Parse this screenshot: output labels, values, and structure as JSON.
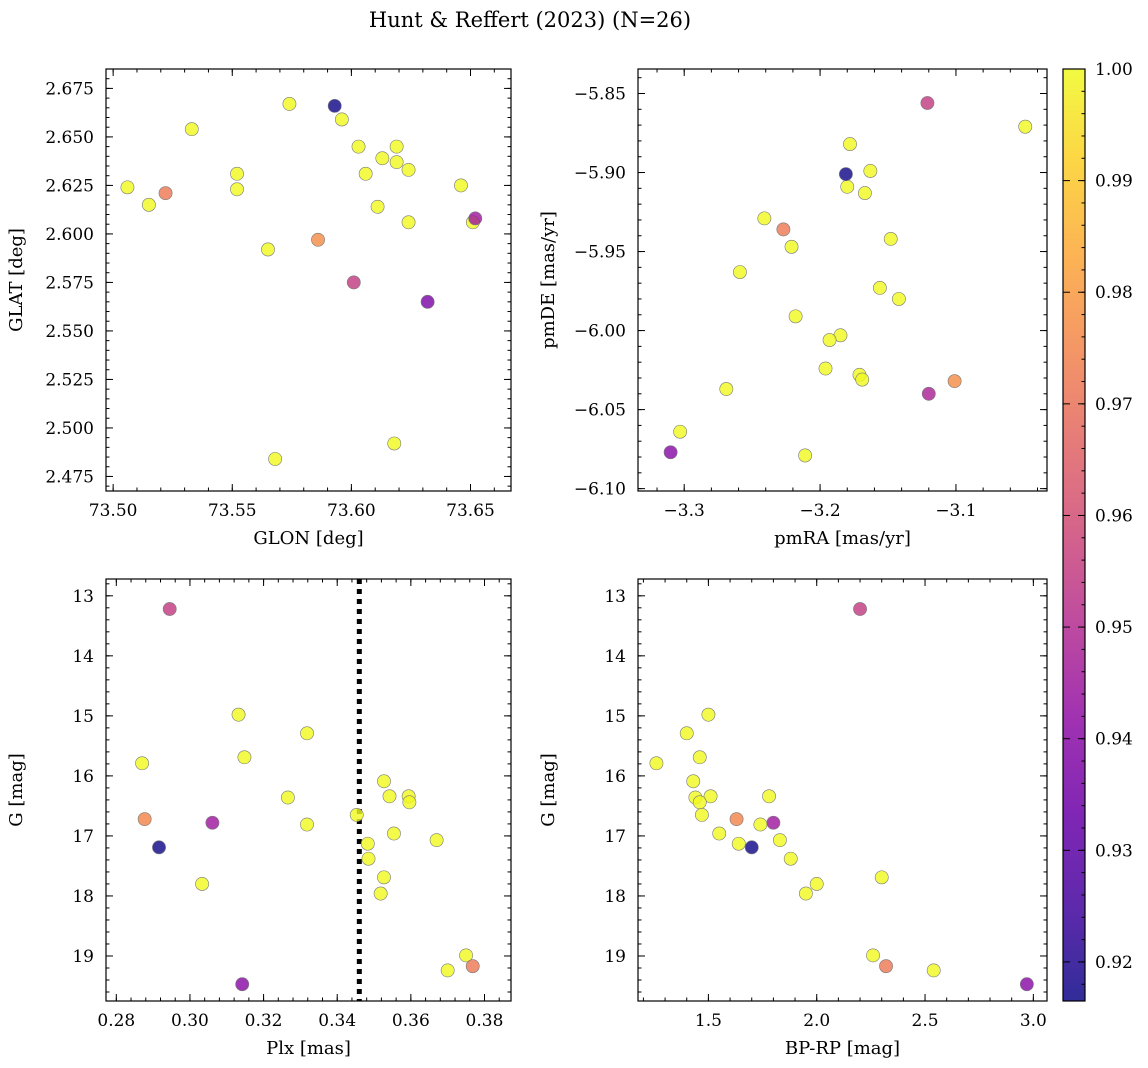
{
  "figure": {
    "title": "Hunt & Reffert (2023) (N=26)"
  },
  "colorbar": {
    "colormap": "plasma",
    "range": [
      0.9165,
      1.0
    ],
    "ticks": [
      0.92,
      0.93,
      0.94,
      0.95,
      0.96,
      0.97,
      0.98,
      0.99,
      1.0
    ],
    "tick_labels": [
      "0.92",
      "0.93",
      "0.94",
      "0.95",
      "0.96",
      "0.97",
      "0.98",
      "0.99",
      "1.00"
    ]
  },
  "chart_data": [
    {
      "type": "scatter",
      "id": "sky",
      "xlabel": "GLON [deg]",
      "ylabel": "GLAT [deg]",
      "xlim": [
        73.497,
        73.667
      ],
      "ylim": [
        2.4675,
        2.685
      ],
      "x_ticks": [
        73.5,
        73.55,
        73.6,
        73.65
      ],
      "x_tick_labels": [
        "73.50",
        "73.55",
        "73.60",
        "73.65"
      ],
      "y_ticks": [
        2.475,
        2.5,
        2.525,
        2.55,
        2.575,
        2.6,
        2.625,
        2.65,
        2.675
      ],
      "y_tick_labels": [
        "2.475",
        "2.500",
        "2.525",
        "2.550",
        "2.575",
        "2.600",
        "2.625",
        "2.650",
        "2.675"
      ],
      "points": [
        {
          "x": 73.593,
          "y": 2.666,
          "c": 0.917
        },
        {
          "x": 73.574,
          "y": 2.667,
          "c": 1.0
        },
        {
          "x": 73.533,
          "y": 2.654,
          "c": 1.0
        },
        {
          "x": 73.596,
          "y": 2.659,
          "c": 1.0
        },
        {
          "x": 73.603,
          "y": 2.645,
          "c": 1.0
        },
        {
          "x": 73.619,
          "y": 2.645,
          "c": 1.0
        },
        {
          "x": 73.613,
          "y": 2.639,
          "c": 1.0
        },
        {
          "x": 73.619,
          "y": 2.637,
          "c": 1.0
        },
        {
          "x": 73.624,
          "y": 2.633,
          "c": 1.0
        },
        {
          "x": 73.552,
          "y": 2.631,
          "c": 1.0
        },
        {
          "x": 73.606,
          "y": 2.631,
          "c": 1.0
        },
        {
          "x": 73.506,
          "y": 2.624,
          "c": 1.0
        },
        {
          "x": 73.552,
          "y": 2.623,
          "c": 1.0
        },
        {
          "x": 73.646,
          "y": 2.625,
          "c": 1.0
        },
        {
          "x": 73.522,
          "y": 2.621,
          "c": 0.972
        },
        {
          "x": 73.515,
          "y": 2.615,
          "c": 1.0
        },
        {
          "x": 73.611,
          "y": 2.614,
          "c": 1.0
        },
        {
          "x": 73.652,
          "y": 2.608,
          "c": 0.945
        },
        {
          "x": 73.624,
          "y": 2.606,
          "c": 1.0
        },
        {
          "x": 73.651,
          "y": 2.606,
          "c": 1.0
        },
        {
          "x": 73.586,
          "y": 2.597,
          "c": 0.977
        },
        {
          "x": 73.565,
          "y": 2.592,
          "c": 1.0
        },
        {
          "x": 73.601,
          "y": 2.575,
          "c": 0.955
        },
        {
          "x": 73.632,
          "y": 2.565,
          "c": 0.937
        },
        {
          "x": 73.618,
          "y": 2.492,
          "c": 1.0
        },
        {
          "x": 73.568,
          "y": 2.484,
          "c": 1.0
        }
      ]
    },
    {
      "type": "scatter",
      "id": "pm",
      "xlabel": "pmRA [mas/yr]",
      "ylabel": "pmDE [mas/yr]",
      "xlim": [
        -3.334,
        -3.033
      ],
      "ylim": [
        -6.1015,
        -5.8345
      ],
      "x_ticks": [
        -3.3,
        -3.2,
        -3.1
      ],
      "x_tick_labels": [
        "−3.3",
        "−3.2",
        "−3.1"
      ],
      "y_ticks": [
        -6.1,
        -6.05,
        -6.0,
        -5.95,
        -5.9,
        -5.85
      ],
      "y_tick_labels": [
        "−6.10",
        "−6.05",
        "−6.00",
        "−5.95",
        "−5.90",
        "−5.85"
      ],
      "points": [
        {
          "x": -3.121,
          "y": -5.856,
          "c": 0.955
        },
        {
          "x": -3.049,
          "y": -5.871,
          "c": 1.0
        },
        {
          "x": -3.178,
          "y": -5.882,
          "c": 1.0
        },
        {
          "x": -3.181,
          "y": -5.901,
          "c": 0.917
        },
        {
          "x": -3.163,
          "y": -5.899,
          "c": 1.0
        },
        {
          "x": -3.18,
          "y": -5.909,
          "c": 1.0
        },
        {
          "x": -3.167,
          "y": -5.913,
          "c": 1.0
        },
        {
          "x": -3.241,
          "y": -5.929,
          "c": 1.0
        },
        {
          "x": -3.227,
          "y": -5.936,
          "c": 0.972
        },
        {
          "x": -3.148,
          "y": -5.942,
          "c": 1.0
        },
        {
          "x": -3.221,
          "y": -5.947,
          "c": 1.0
        },
        {
          "x": -3.259,
          "y": -5.963,
          "c": 1.0
        },
        {
          "x": -3.156,
          "y": -5.973,
          "c": 1.0
        },
        {
          "x": -3.142,
          "y": -5.98,
          "c": 1.0
        },
        {
          "x": -3.218,
          "y": -5.991,
          "c": 1.0
        },
        {
          "x": -3.185,
          "y": -6.003,
          "c": 1.0
        },
        {
          "x": -3.193,
          "y": -6.006,
          "c": 1.0
        },
        {
          "x": -3.196,
          "y": -6.024,
          "c": 1.0
        },
        {
          "x": -3.171,
          "y": -6.028,
          "c": 1.0
        },
        {
          "x": -3.169,
          "y": -6.031,
          "c": 1.0
        },
        {
          "x": -3.101,
          "y": -6.032,
          "c": 0.977
        },
        {
          "x": -3.269,
          "y": -6.037,
          "c": 1.0
        },
        {
          "x": -3.12,
          "y": -6.04,
          "c": 0.948
        },
        {
          "x": -3.303,
          "y": -6.064,
          "c": 1.0
        },
        {
          "x": -3.31,
          "y": -6.077,
          "c": 0.94
        },
        {
          "x": -3.211,
          "y": -6.079,
          "c": 1.0
        }
      ]
    },
    {
      "type": "scatter",
      "id": "plx_g",
      "xlabel": "Plx [mas]",
      "ylabel": "G [mag]",
      "xlim": [
        0.2772,
        0.3872
      ],
      "ylim": [
        19.75,
        12.72
      ],
      "y_inverted": true,
      "x_ticks": [
        0.28,
        0.3,
        0.32,
        0.34,
        0.36,
        0.38
      ],
      "x_tick_labels": [
        "0.28",
        "0.30",
        "0.32",
        "0.34",
        "0.36",
        "0.38"
      ],
      "y_ticks": [
        13,
        14,
        15,
        16,
        17,
        18,
        19
      ],
      "y_tick_labels": [
        "13",
        "14",
        "15",
        "16",
        "17",
        "18",
        "19"
      ],
      "vline": {
        "x": 0.346,
        "style": "dotted",
        "color": "#000000"
      },
      "points": [
        {
          "x": 0.2945,
          "y": 13.22,
          "c": 0.955
        },
        {
          "x": 0.3132,
          "y": 14.98,
          "c": 1.0
        },
        {
          "x": 0.3318,
          "y": 15.29,
          "c": 1.0
        },
        {
          "x": 0.3148,
          "y": 15.69,
          "c": 1.0
        },
        {
          "x": 0.287,
          "y": 15.79,
          "c": 1.0
        },
        {
          "x": 0.3527,
          "y": 16.09,
          "c": 1.0
        },
        {
          "x": 0.3266,
          "y": 16.36,
          "c": 1.0
        },
        {
          "x": 0.3542,
          "y": 16.34,
          "c": 1.0
        },
        {
          "x": 0.3594,
          "y": 16.34,
          "c": 1.0
        },
        {
          "x": 0.3596,
          "y": 16.44,
          "c": 1.0
        },
        {
          "x": 0.3453,
          "y": 16.65,
          "c": 1.0
        },
        {
          "x": 0.2877,
          "y": 16.72,
          "c": 0.975
        },
        {
          "x": 0.3061,
          "y": 16.78,
          "c": 0.945
        },
        {
          "x": 0.3318,
          "y": 16.81,
          "c": 1.0
        },
        {
          "x": 0.3554,
          "y": 16.96,
          "c": 1.0
        },
        {
          "x": 0.367,
          "y": 17.07,
          "c": 1.0
        },
        {
          "x": 0.3483,
          "y": 17.13,
          "c": 1.0
        },
        {
          "x": 0.2916,
          "y": 17.19,
          "c": 0.917
        },
        {
          "x": 0.3485,
          "y": 17.38,
          "c": 1.0
        },
        {
          "x": 0.3527,
          "y": 17.69,
          "c": 1.0
        },
        {
          "x": 0.3033,
          "y": 17.8,
          "c": 1.0
        },
        {
          "x": 0.3518,
          "y": 17.96,
          "c": 1.0
        },
        {
          "x": 0.375,
          "y": 18.99,
          "c": 1.0
        },
        {
          "x": 0.3768,
          "y": 19.17,
          "c": 0.972
        },
        {
          "x": 0.37,
          "y": 19.24,
          "c": 1.0
        },
        {
          "x": 0.3142,
          "y": 19.47,
          "c": 0.94
        }
      ]
    },
    {
      "type": "scatter",
      "id": "cmd",
      "xlabel": "BP-RP [mag]",
      "ylabel": "G [mag]",
      "xlim": [
        1.175,
        3.063
      ],
      "ylim": [
        19.75,
        12.72
      ],
      "y_inverted": true,
      "x_ticks": [
        1.5,
        2.0,
        2.5,
        3.0
      ],
      "x_tick_labels": [
        "1.5",
        "2.0",
        "2.5",
        "3.0"
      ],
      "y_ticks": [
        13,
        14,
        15,
        16,
        17,
        18,
        19
      ],
      "y_tick_labels": [
        "13",
        "14",
        "15",
        "16",
        "17",
        "18",
        "19"
      ],
      "points": [
        {
          "x": 2.2,
          "y": 13.22,
          "c": 0.955
        },
        {
          "x": 1.5,
          "y": 14.98,
          "c": 1.0
        },
        {
          "x": 1.4,
          "y": 15.29,
          "c": 1.0
        },
        {
          "x": 1.46,
          "y": 15.69,
          "c": 1.0
        },
        {
          "x": 1.26,
          "y": 15.79,
          "c": 1.0
        },
        {
          "x": 1.43,
          "y": 16.09,
          "c": 1.0
        },
        {
          "x": 1.44,
          "y": 16.36,
          "c": 1.0
        },
        {
          "x": 1.51,
          "y": 16.34,
          "c": 1.0
        },
        {
          "x": 1.78,
          "y": 16.34,
          "c": 1.0
        },
        {
          "x": 1.46,
          "y": 16.44,
          "c": 1.0
        },
        {
          "x": 1.47,
          "y": 16.65,
          "c": 1.0
        },
        {
          "x": 1.63,
          "y": 16.72,
          "c": 0.975
        },
        {
          "x": 1.8,
          "y": 16.78,
          "c": 0.945
        },
        {
          "x": 1.74,
          "y": 16.81,
          "c": 1.0
        },
        {
          "x": 1.55,
          "y": 16.96,
          "c": 1.0
        },
        {
          "x": 1.83,
          "y": 17.07,
          "c": 1.0
        },
        {
          "x": 1.64,
          "y": 17.13,
          "c": 1.0
        },
        {
          "x": 1.7,
          "y": 17.19,
          "c": 0.917
        },
        {
          "x": 1.88,
          "y": 17.38,
          "c": 1.0
        },
        {
          "x": 2.3,
          "y": 17.69,
          "c": 1.0
        },
        {
          "x": 2.0,
          "y": 17.8,
          "c": 1.0
        },
        {
          "x": 1.95,
          "y": 17.96,
          "c": 1.0
        },
        {
          "x": 2.26,
          "y": 18.99,
          "c": 1.0
        },
        {
          "x": 2.32,
          "y": 19.17,
          "c": 0.972
        },
        {
          "x": 2.54,
          "y": 19.24,
          "c": 1.0
        },
        {
          "x": 2.97,
          "y": 19.47,
          "c": 0.94
        }
      ]
    }
  ]
}
